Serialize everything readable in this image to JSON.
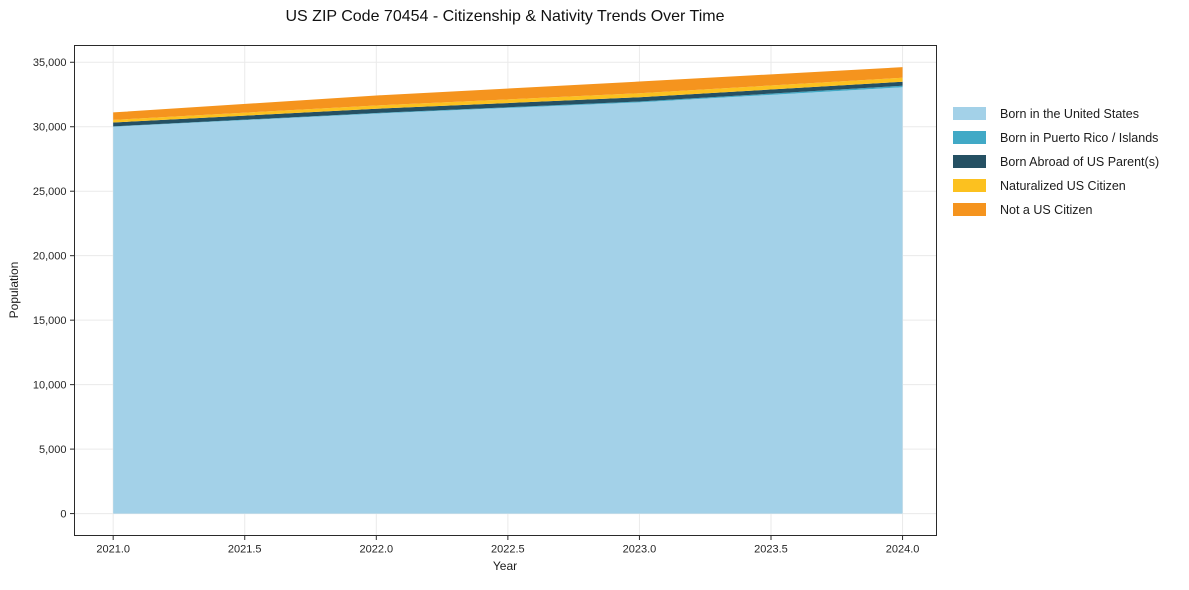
{
  "chart_data": {
    "type": "area",
    "stacked": true,
    "title": "US ZIP Code 70454 - Citizenship & Nativity Trends Over Time",
    "xlabel": "Year",
    "ylabel": "Population",
    "x": [
      2021,
      2022,
      2023,
      2024
    ],
    "xlim": [
      2020.853,
      2024.129
    ],
    "ylim": [
      -1700,
      36300
    ],
    "x_tick_values": [
      2021.0,
      2021.5,
      2022.0,
      2022.5,
      2023.0,
      2023.5,
      2024.0
    ],
    "x_tick_labels": [
      "2021.0",
      "2021.5",
      "2022.0",
      "2022.5",
      "2023.0",
      "2023.5",
      "2024.0"
    ],
    "y_tick_values": [
      0,
      5000,
      10000,
      15000,
      20000,
      25000,
      30000,
      35000
    ],
    "y_tick_labels": [
      "0",
      "5,000",
      "10,000",
      "15,000",
      "20,000",
      "25,000",
      "30,000",
      "35,000"
    ],
    "grid": true,
    "legend_position": "right",
    "series": [
      {
        "name": "Born in the United States",
        "color": "#A3D1E8",
        "values": [
          30000,
          31020,
          31890,
          33060
        ]
      },
      {
        "name": "Born in Puerto Rico / Islands",
        "color": "#41A9C6",
        "values": [
          30,
          45,
          65,
          120
        ]
      },
      {
        "name": "Born Abroad of US Parent(s)",
        "color": "#255063",
        "values": [
          300,
          330,
          330,
          310
        ]
      },
      {
        "name": "Naturalized US Citizen",
        "color": "#FCC11F",
        "values": [
          200,
          255,
          310,
          310
        ]
      },
      {
        "name": "Not a US Citizen",
        "color": "#F5941E",
        "values": [
          580,
          775,
          910,
          820
        ]
      }
    ]
  }
}
